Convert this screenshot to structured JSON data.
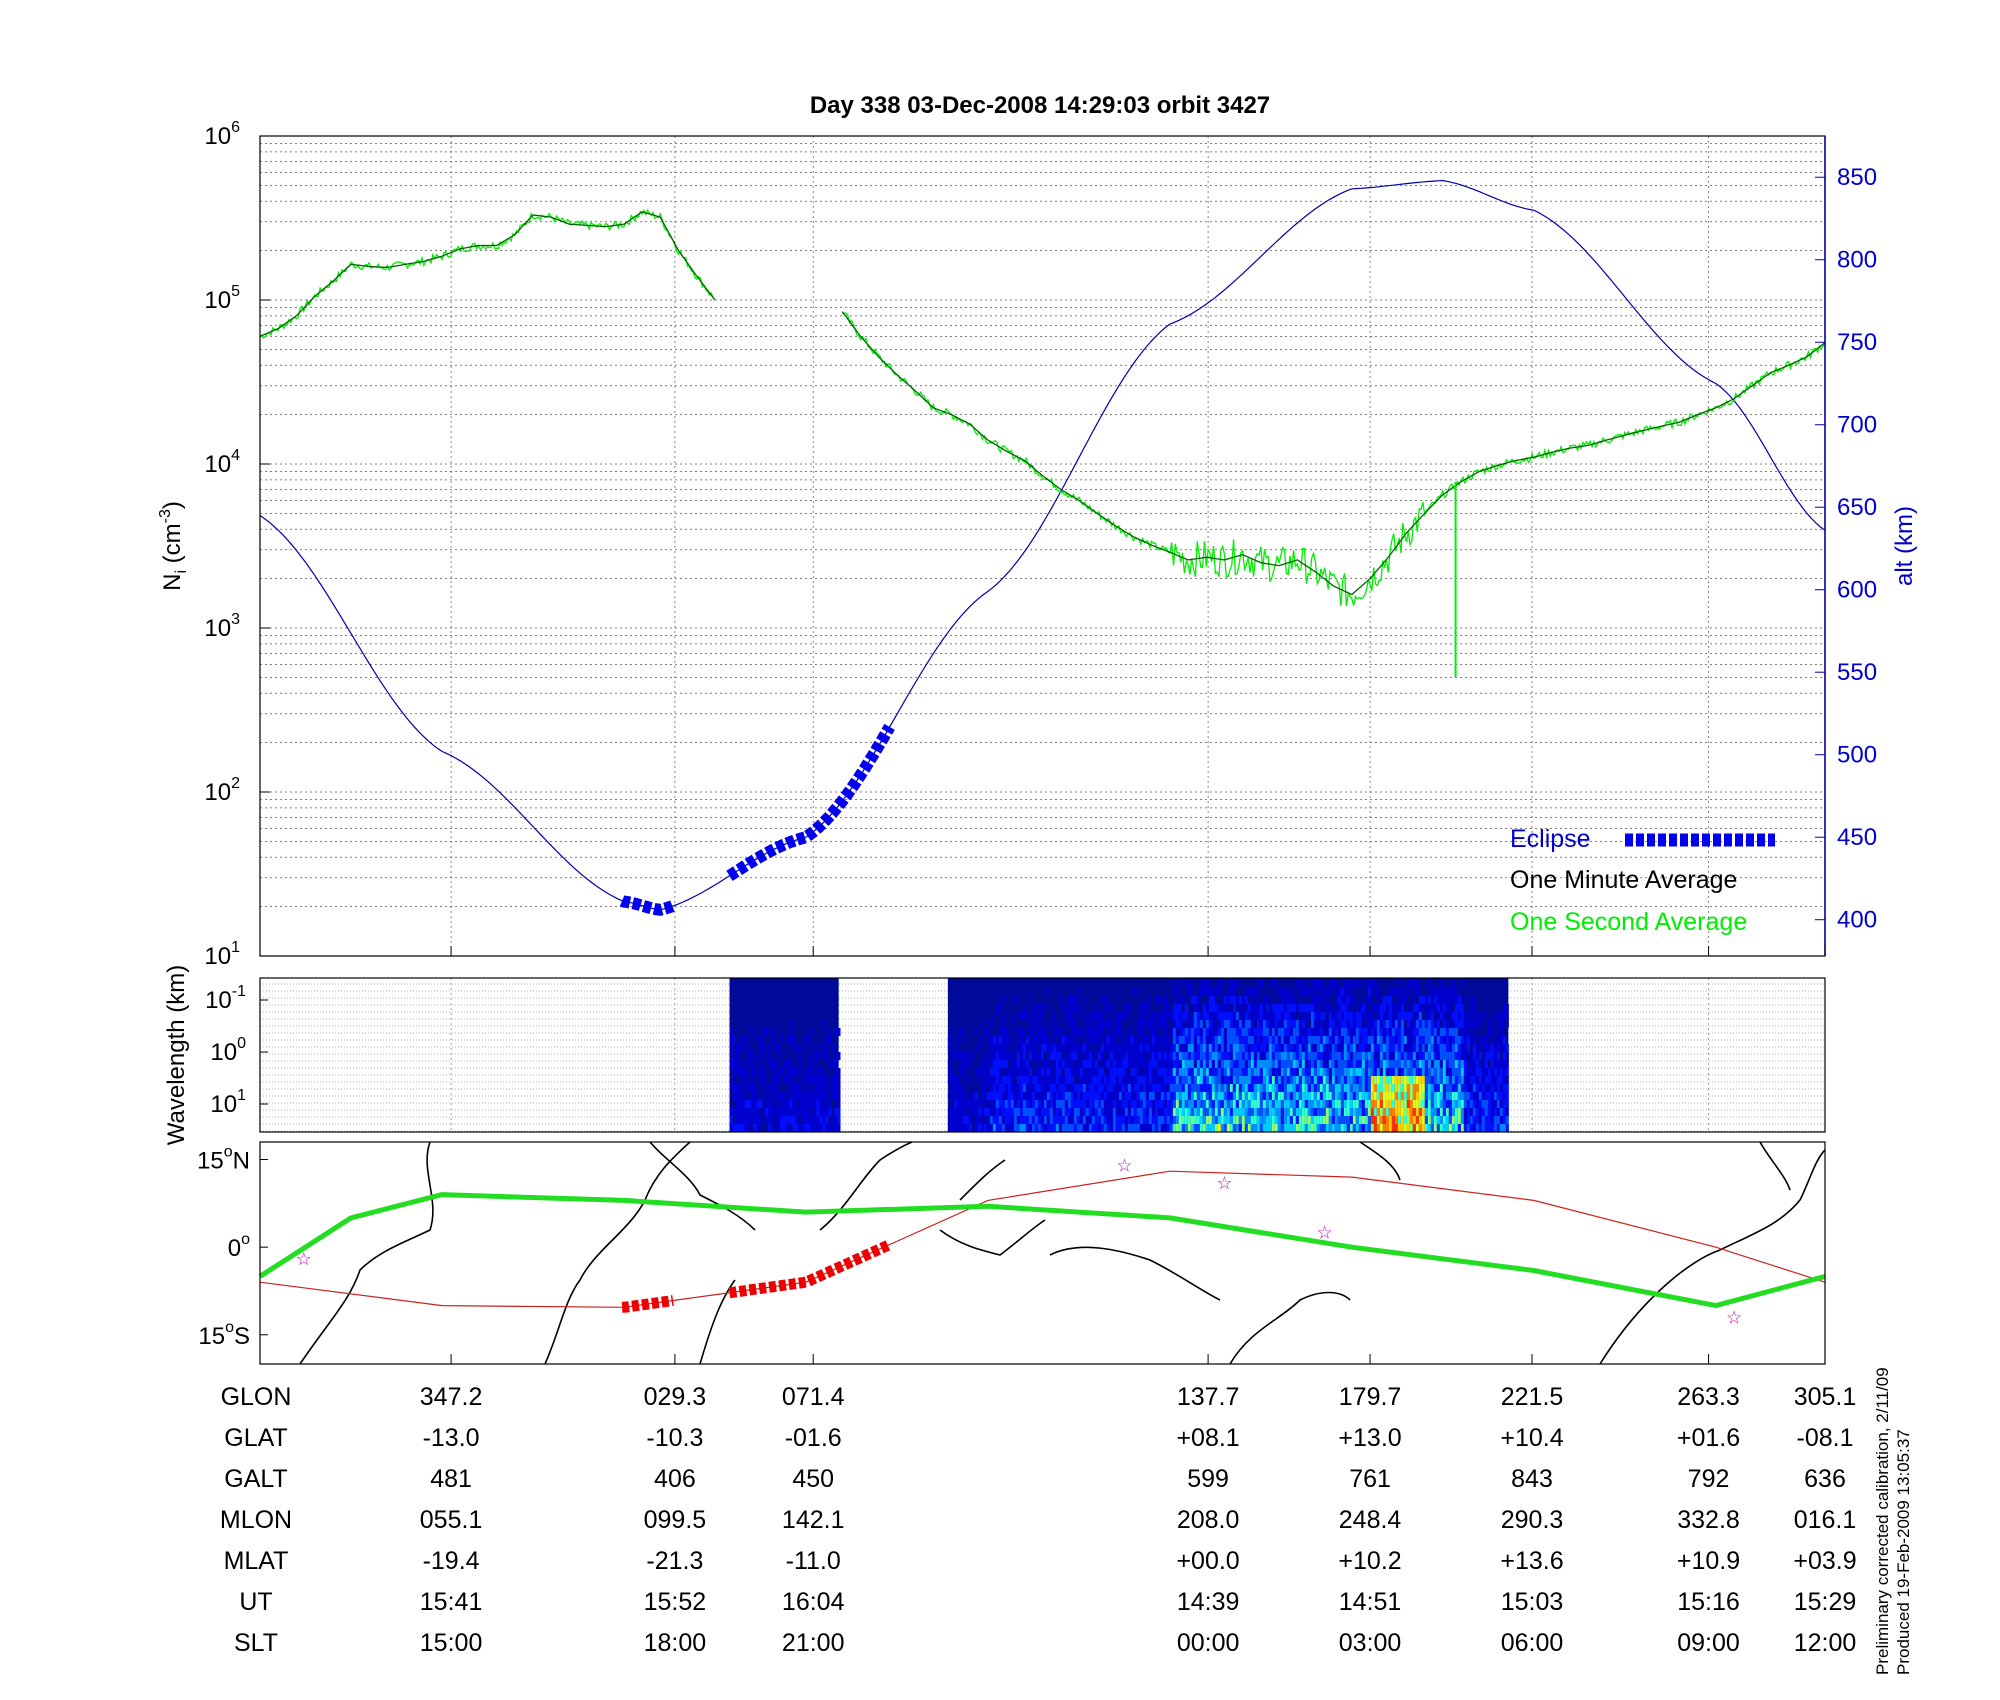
{
  "title": "Day 338  03-Dec-2008 14:29:03   orbit 3427",
  "side_note": [
    "Preliminary corrected calibration, 2/11/09",
    "Produced 19-Feb-2009 13:05:37"
  ],
  "colors": {
    "altitude": "#0000aa",
    "eclipse": "#0000ee",
    "one_minute": "#006400",
    "one_second": "#00ee00",
    "ground_track": "#cc2222",
    "magnetic_equator": "#22dd22",
    "stars": "#cc00cc"
  },
  "chart_data": [
    {
      "type": "line",
      "panel": "ion density and altitude",
      "ylabel_left": {
        "main": "N",
        "sub": "i",
        "unit_pre": " (cm",
        "unit_sup": "-3",
        "unit_post": ")"
      },
      "ylabel_right": "alt (km)",
      "yscale_left": "log",
      "ylim_left": [
        10,
        1000000
      ],
      "left_ticks": [
        {
          "base": "10",
          "exp": "1"
        },
        {
          "base": "10",
          "exp": "2"
        },
        {
          "base": "10",
          "exp": "3"
        },
        {
          "base": "10",
          "exp": "4"
        },
        {
          "base": "10",
          "exp": "5"
        },
        {
          "base": "10",
          "exp": "6"
        }
      ],
      "ylim_right": [
        378,
        875
      ],
      "right_ticks": [
        "400",
        "450",
        "500",
        "550",
        "600",
        "650",
        "700",
        "750",
        "800",
        "850"
      ],
      "grid": true,
      "legend": {
        "position": "lower-right",
        "items": [
          {
            "label": "Eclipse",
            "style": "thick-dashed",
            "color": "#0000ee"
          },
          {
            "label": "One Minute Average",
            "color": "#000000"
          },
          {
            "label": "One Second Average",
            "color": "#00ee00"
          }
        ]
      },
      "x_ut_minutes": {
        "start": 0,
        "end": 86
      },
      "altitude_km": [
        [
          0,
          645
        ],
        [
          10,
          502
        ],
        [
          20,
          411
        ],
        [
          22,
          406
        ],
        [
          30,
          450
        ],
        [
          40,
          599
        ],
        [
          50,
          761
        ],
        [
          60,
          843
        ],
        [
          65,
          848
        ],
        [
          70,
          830
        ],
        [
          80,
          725
        ],
        [
          86,
          636
        ]
      ],
      "eclipse_intervals_min": [
        [
          19.9,
          22.8
        ],
        [
          25.8,
          34.6
        ]
      ],
      "one_minute_average": [
        {
          "segment": 1,
          "x": [
            0,
            1,
            2,
            3,
            4,
            5,
            6,
            7,
            8,
            9,
            10,
            11,
            12,
            13,
            14,
            15,
            16,
            17,
            18,
            19,
            20,
            21,
            22,
            23,
            24,
            25
          ],
          "y": [
            60000,
            67000,
            80000,
            105000,
            130000,
            165000,
            160000,
            158000,
            165000,
            172000,
            185000,
            205000,
            215000,
            215000,
            250000,
            330000,
            320000,
            290000,
            285000,
            280000,
            290000,
            345000,
            320000,
            200000,
            140000,
            100000
          ]
        },
        {
          "segment": 2,
          "x": [
            32,
            33,
            34,
            35,
            36,
            37,
            38,
            39,
            40,
            41,
            42,
            43,
            44,
            45,
            46,
            47,
            48,
            49,
            50,
            51,
            52,
            53,
            54,
            55,
            56,
            57,
            58,
            59,
            60,
            61,
            62,
            63,
            64,
            65,
            66,
            67,
            68,
            69,
            70,
            71,
            72,
            73,
            74,
            75,
            76,
            77,
            78,
            79,
            80,
            81,
            82,
            83,
            84,
            85,
            86
          ],
          "y": [
            85000,
            60000,
            45000,
            35000,
            28000,
            22000,
            20000,
            17500,
            14000,
            12000,
            10500,
            8500,
            7000,
            6000,
            5000,
            4200,
            3600,
            3200,
            2900,
            2600,
            2700,
            2600,
            2800,
            2500,
            2400,
            2600,
            2200,
            1800,
            1600,
            2000,
            2700,
            3800,
            5000,
            6500,
            7800,
            9000,
            9800,
            10500,
            11000,
            11800,
            12500,
            13000,
            14000,
            15000,
            16000,
            17000,
            18000,
            20000,
            22000,
            25000,
            30000,
            36000,
            40000,
            45000,
            55000
          ]
        }
      ],
      "one_second_average_notes": "matches one minute average with increased scatter between about 51 and 64 minutes and a dip to about 500 near 65.7 minutes"
    },
    {
      "type": "heatmap",
      "panel": "wavelength spectrogram",
      "ylabel": "Wavelength (km)",
      "yscale": "log",
      "yticks": [
        {
          "base": "10",
          "exp": "-1"
        },
        {
          "base": "10",
          "exp": "0"
        },
        {
          "base": "10",
          "exp": "1"
        }
      ],
      "data_intervals_min": [
        [
          25.8,
          31.8
        ],
        [
          37.8,
          68.6
        ]
      ],
      "colormap": "jet"
    },
    {
      "type": "line",
      "panel": "map",
      "yticks": [
        {
          "value": "15",
          "hem": "N"
        },
        {
          "value": "0",
          "hem": ""
        },
        {
          "value": "15",
          "hem": "S"
        }
      ],
      "ylim": [
        -20,
        18
      ],
      "ground_track_lat": [
        [
          0,
          -6
        ],
        [
          10,
          -10
        ],
        [
          20,
          -10.3
        ],
        [
          30,
          -6
        ],
        [
          40,
          8
        ],
        [
          50,
          13
        ],
        [
          60,
          12
        ],
        [
          70,
          8
        ],
        [
          80,
          0
        ],
        [
          86,
          -6
        ]
      ],
      "magnetic_equator_lat": [
        [
          0,
          -5
        ],
        [
          5,
          5
        ],
        [
          10,
          9
        ],
        [
          20,
          8
        ],
        [
          30,
          6
        ],
        [
          40,
          7
        ],
        [
          50,
          5
        ],
        [
          60,
          0
        ],
        [
          70,
          -4
        ],
        [
          80,
          -10
        ],
        [
          86,
          -5
        ]
      ],
      "stars_lat": [
        [
          2.4,
          -2
        ],
        [
          47.5,
          14
        ],
        [
          53,
          11
        ],
        [
          58.5,
          2.5
        ],
        [
          81,
          -12
        ]
      ]
    }
  ],
  "table": {
    "row_labels": [
      "GLON",
      "GLAT",
      "GALT",
      "MLON",
      "MLAT",
      "UT",
      "SLT"
    ],
    "columns": [
      [
        "347.2",
        "-13.0",
        "481",
        "055.1",
        "-19.4",
        "15:41",
        "15:00"
      ],
      [
        "029.3",
        "-10.3",
        "406",
        "099.5",
        "-21.3",
        "15:52",
        "18:00"
      ],
      [
        "071.4",
        "-01.6",
        "450",
        "142.1",
        "-11.0",
        "16:04",
        "21:00"
      ],
      [
        "137.7",
        "+08.1",
        "599",
        "208.0",
        "+00.0",
        "14:39",
        "00:00"
      ],
      [
        "179.7",
        "+13.0",
        "761",
        "248.4",
        "+10.2",
        "14:51",
        "03:00"
      ],
      [
        "221.5",
        "+10.4",
        "843",
        "290.3",
        "+13.6",
        "15:03",
        "06:00"
      ],
      [
        "263.3",
        "+01.6",
        "792",
        "332.8",
        "+10.9",
        "15:16",
        "09:00"
      ],
      [
        "305.1",
        "-08.1",
        "636",
        "016.1",
        "+03.9",
        "15:29",
        "12:00"
      ]
    ]
  }
}
